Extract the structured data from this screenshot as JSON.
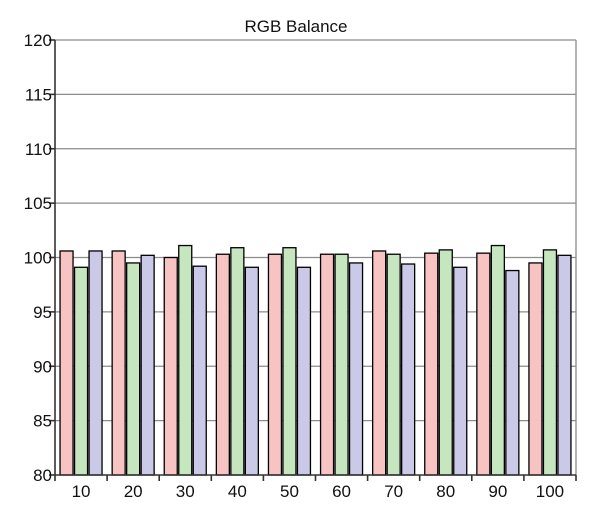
{
  "chart_data": {
    "type": "bar",
    "title": "RGB Balance",
    "xlabel": "",
    "ylabel": "",
    "ylim": [
      80,
      120
    ],
    "yticks": [
      80,
      85,
      90,
      95,
      100,
      105,
      110,
      115,
      120
    ],
    "grid": true,
    "legend": "none",
    "categories": [
      "10",
      "20",
      "30",
      "40",
      "50",
      "60",
      "70",
      "80",
      "90",
      "100"
    ],
    "series": [
      {
        "color": "#f8c3c3",
        "values": [
          100.6,
          100.6,
          100.0,
          100.3,
          100.3,
          100.3,
          100.6,
          100.4,
          100.4,
          99.5
        ]
      },
      {
        "color": "#c6e6c0",
        "values": [
          99.1,
          99.5,
          101.1,
          100.9,
          100.9,
          100.3,
          100.3,
          100.7,
          101.1,
          100.7
        ]
      },
      {
        "color": "#cacae8",
        "values": [
          100.6,
          100.2,
          99.2,
          99.1,
          99.1,
          99.5,
          99.4,
          99.1,
          98.8,
          100.2
        ]
      }
    ]
  }
}
